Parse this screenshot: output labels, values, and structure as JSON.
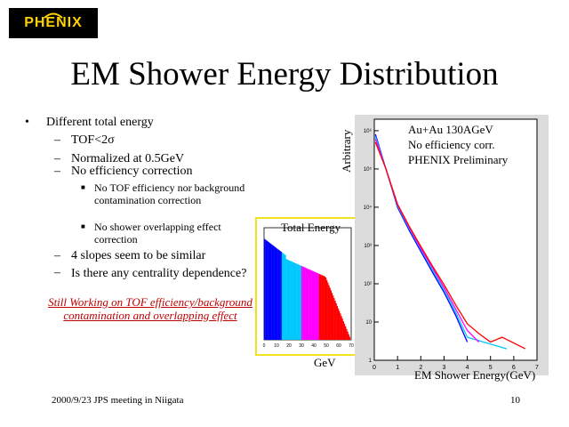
{
  "logo": {
    "text": "PHENIX"
  },
  "title": "EM Shower Energy Distribution",
  "bullets": {
    "main": "Different total energy",
    "items": [
      "TOF<2σ",
      "Normalized at 0.5GeV",
      "No efficiency correction"
    ],
    "subitems": [
      "No TOF efficiency nor background contamination correction",
      "No shower overlapping effect correction"
    ],
    "items2": [
      "4 slopes seem to be similar",
      "Is there any centrality dependence?"
    ]
  },
  "note": "Still Working on TOF efficiency/background contamination and overlapping effect",
  "inset": {
    "title": "Total Energy",
    "xlabel": "GeV",
    "xticks": [
      "0",
      "10",
      "20",
      "30",
      "40",
      "50",
      "60",
      "70"
    ],
    "colors": [
      "#0000ff",
      "#00c8ff",
      "#ff00ff",
      "#ff0000"
    ]
  },
  "chart_data": {
    "type": "line",
    "xlabel": "EM Shower Energy(GeV)",
    "ylabel": "Arbitrary",
    "legend_lines": [
      "Au+Au 130AGeV",
      "No efficiency corr.",
      "PHENIX Preliminary"
    ],
    "xlim": [
      0,
      7
    ],
    "xticks": [
      "0",
      "1",
      "2",
      "3",
      "4",
      "5",
      "6",
      "7"
    ],
    "yscale": "log",
    "yticks": [
      "1",
      "10",
      "10²",
      "10³",
      "10⁴",
      "10⁵",
      "10⁶"
    ],
    "series": [
      {
        "color": "#0000ff",
        "x": [
          0.05,
          0.5,
          1,
          1.5,
          2,
          2.5,
          3,
          3.5,
          4
        ],
        "y": [
          800000,
          100000,
          10000,
          2500,
          700,
          200,
          60,
          15,
          3
        ]
      },
      {
        "color": "#00c8ff",
        "x": [
          0.05,
          0.5,
          1,
          1.5,
          2,
          2.5,
          3,
          3.5,
          4,
          5.7
        ],
        "y": [
          700000,
          100000,
          11000,
          2800,
          800,
          230,
          70,
          18,
          4,
          2
        ]
      },
      {
        "color": "#ff00ff",
        "x": [
          0.05,
          0.5,
          1,
          1.5,
          2,
          2.5,
          3,
          3.5,
          4,
          4.5
        ],
        "y": [
          600000,
          100000,
          11500,
          3000,
          850,
          260,
          80,
          22,
          6,
          3
        ]
      },
      {
        "color": "#ff0000",
        "x": [
          0.05,
          0.5,
          1,
          1.5,
          2,
          2.5,
          3,
          3.5,
          4,
          4.5,
          5,
          5.5,
          6.5
        ],
        "y": [
          500000,
          100000,
          12000,
          3200,
          950,
          290,
          95,
          28,
          9,
          5,
          3,
          4,
          2
        ]
      }
    ]
  },
  "footer": {
    "left": "2000/9/23 JPS meeting in Niigata",
    "page": "10"
  }
}
